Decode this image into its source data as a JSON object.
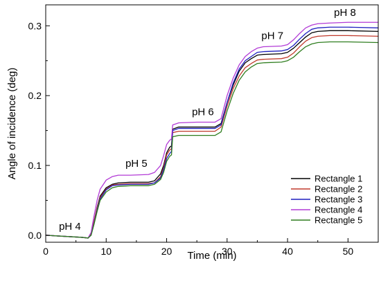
{
  "chart_data": {
    "type": "line",
    "title": "",
    "xlabel": "Time (min)",
    "ylabel": "Angle of incidence (deg)",
    "xlim": [
      0,
      55
    ],
    "ylim": [
      -0.01,
      0.33
    ],
    "xticks": [
      0,
      10,
      20,
      30,
      40,
      50
    ],
    "xtick_labels": [
      "0",
      "10",
      "20",
      "30",
      "40",
      "50"
    ],
    "yticks": [
      0.0,
      0.1,
      0.2,
      0.3
    ],
    "ytick_labels": [
      "0.0",
      "0.1",
      "0.2",
      "0.3"
    ],
    "grid": false,
    "legend_position": "bottom-right",
    "annotations": [
      {
        "text": "pH 4",
        "x": 4,
        "y": 0.008
      },
      {
        "text": "pH 5",
        "x": 15,
        "y": 0.098
      },
      {
        "text": "pH 6",
        "x": 26,
        "y": 0.172
      },
      {
        "text": "pH 7",
        "x": 37.5,
        "y": 0.281
      },
      {
        "text": "pH 8",
        "x": 49.5,
        "y": 0.314
      }
    ],
    "x": [
      0,
      2,
      4,
      6,
      7,
      7.5,
      8,
      8.5,
      9,
      10,
      11,
      12,
      14,
      17,
      18,
      19,
      19.5,
      20,
      20.5,
      20.8,
      21,
      22,
      25,
      28,
      29,
      30,
      31,
      32,
      33,
      34,
      35,
      36,
      39,
      40,
      41,
      42,
      43,
      44,
      45,
      47,
      50,
      55
    ],
    "series": [
      {
        "name": "Rectangle 1",
        "color": "#000000",
        "values": [
          0,
          -0.001,
          -0.002,
          -0.003,
          -0.004,
          0.002,
          0.02,
          0.04,
          0.056,
          0.068,
          0.073,
          0.075,
          0.076,
          0.076,
          0.078,
          0.088,
          0.1,
          0.118,
          0.126,
          0.128,
          0.152,
          0.155,
          0.155,
          0.155,
          0.16,
          0.19,
          0.215,
          0.235,
          0.247,
          0.253,
          0.258,
          0.259,
          0.26,
          0.262,
          0.268,
          0.276,
          0.284,
          0.29,
          0.292,
          0.293,
          0.293,
          0.292
        ]
      },
      {
        "name": "Rectangle 2",
        "color": "#c0392b",
        "values": [
          0,
          -0.001,
          -0.002,
          -0.003,
          -0.004,
          0.002,
          0.02,
          0.039,
          0.054,
          0.066,
          0.072,
          0.073,
          0.074,
          0.074,
          0.075,
          0.084,
          0.097,
          0.115,
          0.122,
          0.124,
          0.147,
          0.149,
          0.149,
          0.149,
          0.155,
          0.185,
          0.21,
          0.228,
          0.24,
          0.246,
          0.251,
          0.252,
          0.253,
          0.255,
          0.261,
          0.27,
          0.278,
          0.283,
          0.285,
          0.286,
          0.286,
          0.285
        ]
      },
      {
        "name": "Rectangle 3",
        "color": "#1f1fbf",
        "values": [
          0,
          -0.001,
          -0.002,
          -0.003,
          -0.004,
          0.0,
          0.017,
          0.036,
          0.052,
          0.065,
          0.071,
          0.072,
          0.073,
          0.073,
          0.075,
          0.082,
          0.094,
          0.11,
          0.117,
          0.12,
          0.15,
          0.153,
          0.153,
          0.153,
          0.158,
          0.19,
          0.218,
          0.238,
          0.25,
          0.256,
          0.262,
          0.263,
          0.264,
          0.266,
          0.272,
          0.281,
          0.289,
          0.295,
          0.297,
          0.298,
          0.298,
          0.297
        ]
      },
      {
        "name": "Rectangle 4",
        "color": "#b23ad6",
        "values": [
          0,
          -0.001,
          -0.002,
          -0.003,
          -0.004,
          0.004,
          0.028,
          0.05,
          0.066,
          0.079,
          0.084,
          0.086,
          0.086,
          0.087,
          0.09,
          0.1,
          0.114,
          0.13,
          0.136,
          0.138,
          0.158,
          0.161,
          0.162,
          0.162,
          0.167,
          0.2,
          0.225,
          0.244,
          0.256,
          0.263,
          0.268,
          0.27,
          0.271,
          0.273,
          0.28,
          0.289,
          0.297,
          0.301,
          0.303,
          0.304,
          0.305,
          0.305
        ]
      },
      {
        "name": "Rectangle 5",
        "color": "#2e7d1e",
        "values": [
          0,
          -0.001,
          -0.002,
          -0.003,
          -0.004,
          0.0,
          0.016,
          0.034,
          0.05,
          0.062,
          0.068,
          0.07,
          0.071,
          0.071,
          0.073,
          0.08,
          0.09,
          0.106,
          0.113,
          0.115,
          0.141,
          0.143,
          0.143,
          0.143,
          0.148,
          0.178,
          0.203,
          0.222,
          0.234,
          0.241,
          0.246,
          0.247,
          0.248,
          0.25,
          0.255,
          0.263,
          0.27,
          0.274,
          0.276,
          0.277,
          0.277,
          0.276
        ]
      }
    ]
  }
}
